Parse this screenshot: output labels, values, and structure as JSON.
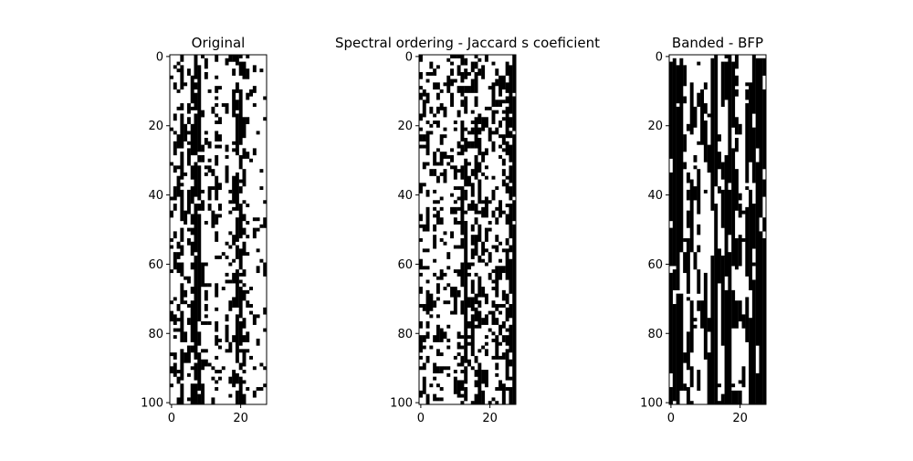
{
  "figure": {
    "background": "#ffffff",
    "on_color": "#000000",
    "off_color": "#ffffff"
  },
  "chart_data": [
    {
      "type": "heatmap",
      "title": "Original",
      "rows": 101,
      "cols": 28,
      "ylim": [
        0,
        100
      ],
      "xlim": [
        0,
        27
      ],
      "xticks": [
        0,
        20
      ],
      "yticks": [
        0,
        20,
        40,
        60,
        80,
        100
      ],
      "colormap": "binary",
      "pattern": "scattered",
      "column_density": [
        0.18,
        0.32,
        0.24,
        0.55,
        0.16,
        0.22,
        0.48,
        0.82,
        0.9,
        0.3,
        0.22,
        0.12,
        0.08,
        0.34,
        0.18,
        0.06,
        0.1,
        0.2,
        0.42,
        0.58,
        0.62,
        0.4,
        0.18,
        0.14,
        0.18,
        0.12,
        0.1,
        0.1
      ],
      "seed": 11
    },
    {
      "type": "heatmap",
      "title": "Spectral ordering - Jaccard s coeficient",
      "rows": 101,
      "cols": 28,
      "ylim": [
        0,
        100
      ],
      "xlim": [
        0,
        27
      ],
      "xticks": [
        0,
        20
      ],
      "yticks": [
        0,
        20,
        40,
        60,
        80,
        100
      ],
      "colormap": "binary",
      "pattern": "scattered",
      "column_density": [
        0.32,
        0.2,
        0.3,
        0.18,
        0.28,
        0.22,
        0.26,
        0.24,
        0.16,
        0.2,
        0.22,
        0.3,
        0.46,
        0.52,
        0.26,
        0.3,
        0.36,
        0.44,
        0.28,
        0.24,
        0.22,
        0.3,
        0.34,
        0.36,
        0.3,
        0.46,
        0.6,
        0.72
      ],
      "seed": 23
    },
    {
      "type": "heatmap",
      "title": "Banded - BFP",
      "rows": 101,
      "cols": 28,
      "ylim": [
        0,
        100
      ],
      "xlim": [
        0,
        27
      ],
      "xticks": [
        0,
        20
      ],
      "yticks": [
        0,
        20,
        40,
        60,
        80,
        100
      ],
      "colormap": "binary",
      "pattern": "banded",
      "column_density": [
        0.92,
        0.8,
        0.56,
        0.42,
        0.3,
        0.28,
        0.3,
        0.22,
        0.24,
        0.2,
        0.24,
        0.28,
        0.74,
        0.7,
        0.36,
        0.4,
        0.52,
        0.6,
        0.44,
        0.28,
        0.24,
        0.22,
        0.34,
        0.5,
        0.54,
        0.62,
        0.72,
        0.8
      ],
      "seed": 37
    }
  ]
}
